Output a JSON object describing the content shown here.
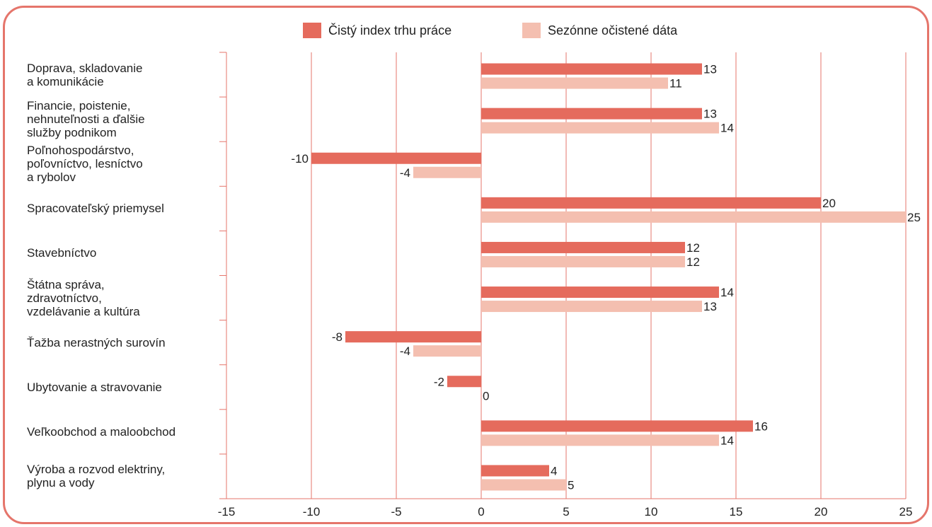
{
  "colors": {
    "series1": "#e56b5d",
    "series2": "#f4bfb0",
    "grid": "#e5756b",
    "frame": "#e5756b",
    "text": "#222222"
  },
  "chart_data": {
    "type": "bar",
    "orientation": "horizontal",
    "legend_position": "top-center",
    "grid": true,
    "xlim": [
      -15,
      25
    ],
    "x_ticks": [
      -15,
      -10,
      -5,
      0,
      5,
      10,
      15,
      20,
      25
    ],
    "categories": [
      "Doprava, skladovanie\na komunikácie",
      "Financie, poistenie,\nnehnuteľnosti a ďalšie\nslužby podnikom",
      "Poľnohospodárstvo,\npoľovníctvo, lesníctvo\na rybolov",
      "Spracovateľský priemysel",
      "Stavebníctvo",
      "Štátna správa,\nzdravotníctvo,\nvzdelávanie a kultúra",
      "Ťažba nerastných surovín",
      "Ubytovanie a stravovanie",
      "Veľkoobchod a maloobchod",
      "Výroba a rozvod elektriny,\nplynu a vody"
    ],
    "series": [
      {
        "name": "Čistý index trhu práce",
        "values": [
          13,
          13,
          -10,
          20,
          12,
          14,
          -8,
          -2,
          16,
          4
        ]
      },
      {
        "name": "Sezónne očistené dáta",
        "values": [
          11,
          14,
          -4,
          25,
          12,
          13,
          -4,
          0,
          14,
          5
        ]
      }
    ]
  }
}
